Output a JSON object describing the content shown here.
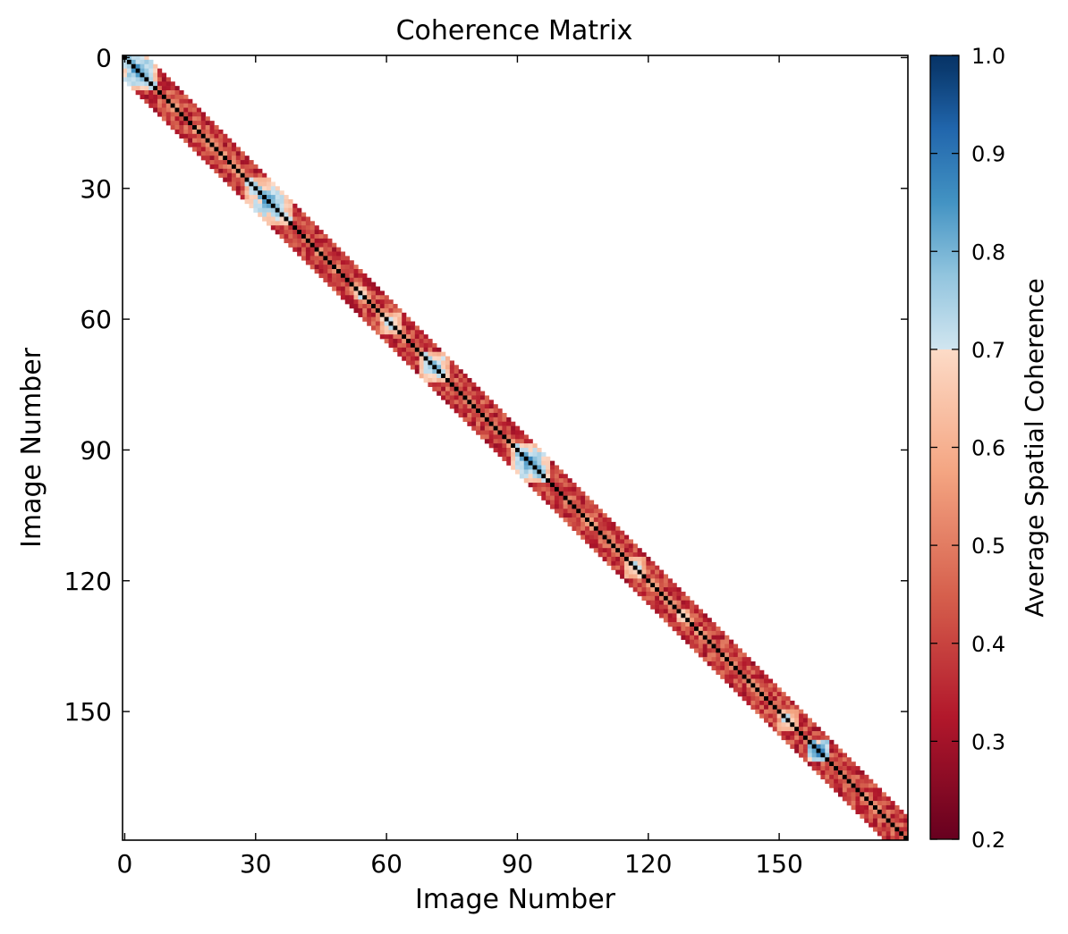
{
  "chart_data": {
    "type": "heatmap",
    "title": "Coherence Matrix",
    "xlabel": "Image Number",
    "ylabel": "Image Number",
    "x_ticks": [
      "0",
      "30",
      "60",
      "90",
      "120",
      "150"
    ],
    "y_ticks": [
      "0",
      "30",
      "60",
      "90",
      "120",
      "150"
    ],
    "x_tick_values": [
      0,
      30,
      60,
      90,
      120,
      150
    ],
    "y_tick_values": [
      0,
      30,
      60,
      90,
      120,
      150
    ],
    "n_images": 180,
    "band_halfwidth": 5,
    "diagonal_value": 1.0,
    "base_band_value": 0.42,
    "off_band": "not shown",
    "high_coherence_clusters": [
      {
        "center": 3,
        "radius": 4,
        "peak": 0.82
      },
      {
        "center": 33,
        "radius": 5,
        "peak": 0.8
      },
      {
        "center": 54,
        "radius": 1,
        "peak": 0.72
      },
      {
        "center": 61,
        "radius": 2,
        "peak": 0.74
      },
      {
        "center": 71,
        "radius": 3,
        "peak": 0.78
      },
      {
        "center": 93,
        "radius": 4,
        "peak": 0.82
      },
      {
        "center": 117,
        "radius": 2,
        "peak": 0.72
      },
      {
        "center": 128,
        "radius": 1,
        "peak": 0.7
      },
      {
        "center": 152,
        "radius": 2,
        "peak": 0.7
      },
      {
        "center": 159,
        "radius": 2,
        "peak": 0.88
      }
    ],
    "colorbar": {
      "label": "Average Spatial Coherence",
      "min": 0.2,
      "max": 1.0,
      "ticks": [
        "0.2",
        "0.3",
        "0.4",
        "0.5",
        "0.6",
        "0.7",
        "0.8",
        "0.9",
        "1.0"
      ],
      "tick_values": [
        0.2,
        0.3,
        0.4,
        0.5,
        0.6,
        0.7,
        0.8,
        0.9,
        1.0
      ],
      "colormap": "RdBu",
      "discontinuity_at": 0.7
    }
  }
}
